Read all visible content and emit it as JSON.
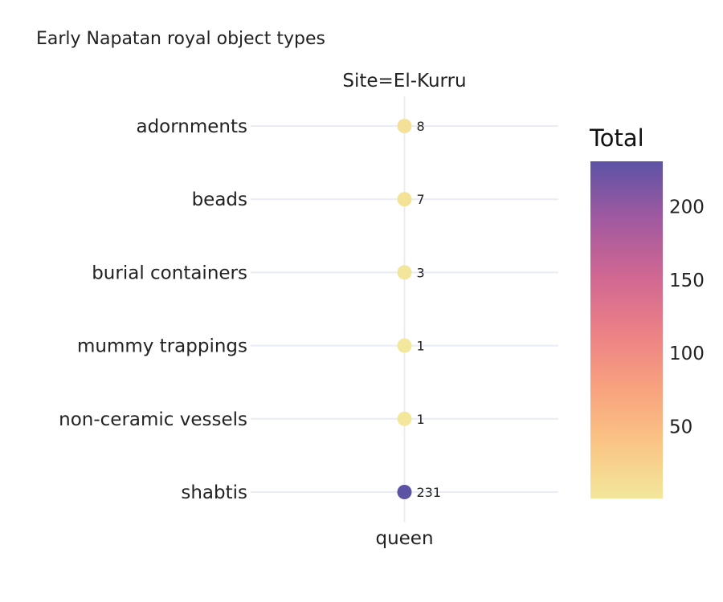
{
  "chart_data": {
    "type": "scatter",
    "title": "Early Napatan royal object types",
    "facet_label": "Site=El-Kurru",
    "categories": [
      "adornments",
      "beads",
      "burial containers",
      "mummy trappings",
      "non-ceramic vessels",
      "shabtis"
    ],
    "x": [
      "queen"
    ],
    "values": [
      8,
      7,
      3,
      1,
      1,
      231
    ],
    "colorbar": {
      "title": "Total",
      "min": 1,
      "max": 231,
      "ticks": [
        50,
        100,
        150,
        200
      ],
      "colors": [
        "#f3e79b",
        "#fac484",
        "#f8a07e",
        "#eb7f86",
        "#ce6693",
        "#a059a0",
        "#5c53a5"
      ]
    },
    "grid": true,
    "legend": "right"
  }
}
